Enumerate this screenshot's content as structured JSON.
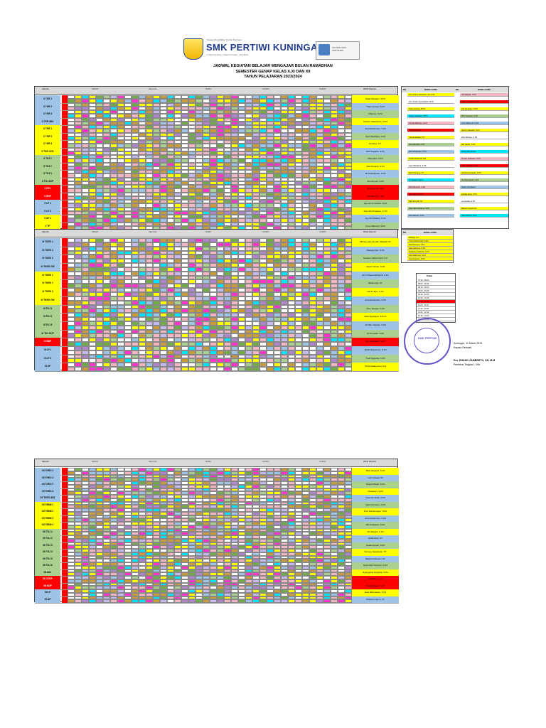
{
  "header": {
    "ministry": "Yayasan Pendidikan Pertiwi Kuningan",
    "school_name": "SMK PERTIWI KUNINGAN",
    "address": "Jl. Raya Cirendang - Cigugur, Kuningan - Jawa Barat",
    "iso_label": "ISO 9001:2015 CERTIFIED"
  },
  "titles": {
    "line1": "JADWAL KEGIATAN BELAJAR MENGAJAR BULAN RAMADHAN",
    "line2": "SEMESTER GENAP KELAS X,XI DAN XII",
    "line3": "TAHUN PELAJARAN 2023/2024"
  },
  "sheet1": {
    "head_kelas": "KELAS",
    "days": [
      "SENIN",
      "SELASA",
      "RABU",
      "KAMIS",
      "JUMAT"
    ],
    "head_wali": "WALI KELAS",
    "classes": [
      "X TKR 1",
      "X TKR 2",
      "X TKR 3",
      "X TKR AB1",
      "X TKR 1",
      "X TKR 2",
      "X TKR 3",
      "X TKR GG1",
      "X TKJ 1",
      "X TKJ 2",
      "X TKJ 3",
      "X TKJ ACP",
      "X RPL",
      "X BDP",
      "X LP 1",
      "X LP 2",
      "X AP 1",
      "X TP"
    ],
    "walis": [
      "Pajar Mutaqim, S.Pd",
      "Trias Lisnaya, S.Pd",
      "Marjono, S.Pd",
      "Moenir Oktavianus, S.Pd",
      "Ahmad Rahman, S.Pd",
      "Iwan Wardiana, S.Pd",
      "Endawo, S.T",
      "Riki Nugraha, S.Pd",
      "Marjuddin, S.Pd",
      "Atik Rustanti, S.Pd",
      "Ifit Nurbudiman, S.Pd",
      "Lilis Nuryati, S.Pd",
      "Dewi Hayati, S.Pd",
      "Sri Mulyani, S.Pd",
      "Ayu Ammi Anbiani, S.Pd",
      "Roni Dwi Prasetyo, S.Pd",
      "Ayu Siti Widiarti, S.Pd",
      "Cece Mahmud, S.Pd"
    ]
  },
  "sheet2": {
    "head_kelas": "KELAS",
    "days": [
      "SENIN",
      "SELASA",
      "RABU",
      "KAMIS",
      "JUMAT"
    ],
    "head_wali": "WALI KELAS",
    "classes": [
      "XI TKRO 1",
      "XI TKRO 2",
      "XI TKRO 3",
      "XI TKRO GW",
      "XI TKRO 1",
      "XI TKRO 2",
      "XI TKRO 3",
      "XI TKRO GW",
      "XI TKJ 1",
      "XI TKJ 2",
      "XI TKJ 3",
      "XI TKJ ACP",
      "XI BDP",
      "XI LP 1",
      "XI LP 2",
      "XI AP"
    ],
    "walis": [
      "Muhammad Hendar, Mulyadi, ST",
      "Dadang Alwi, S.Pd",
      "Derachi, Abdul Gholi, S.P",
      "Yayan Sofyan, S.Pd",
      "Enin Sihana Wirhandi, S.Pd",
      "Mulai Argo, ST",
      "Hilmi Fauzi, S.Pd",
      "Ahmad Rahman, S.Pd",
      "Tony Jeripani, S.Pd",
      "Eddi Agustiana, S.Kom",
      "Ali Rifer Nandar, S.Pd",
      "Ali Nuroallin, S.Pd",
      "Ayu Wahndani, S.Pd",
      "Shelli Nuyi Aman, S.Pd",
      "Toufi Nugraha, S.Pd",
      "Pinka Padayonan, S.E"
    ]
  },
  "sheet3": {
    "head_kelas": "KELAS",
    "days": [
      "SENIN",
      "SELASA",
      "RABU",
      "KAMIS",
      "JUMAT"
    ],
    "head_wali": "WALI KELAS",
    "classes": [
      "XII TKRO 1",
      "XII TKRO 2",
      "XII TKRO 3",
      "XII TKRO 4",
      "XII TKRO AB1",
      "XII TBSM 1",
      "XII TBSM 2",
      "XII TBSM 3",
      "XII TBSM 4",
      "XII TKJ 1",
      "XII TKJ 2",
      "XII TKJ 3",
      "XII TKJ 4",
      "XII TKJ 5",
      "XII TKJ 6",
      "XII AKL",
      "XII OTKP",
      "XII BDP",
      "XII LP",
      "XII AP"
    ],
    "walis": [
      "Budi Setiyanti, S.Pd",
      "Ade Hidayat, ST",
      "Pupat Pribadi, S.Pd",
      "Gunaman, S.Pd",
      "Tyas Nur Dullo, S.Pd",
      "Agus Purnama, S.Pd",
      "Popi Perlianingsin, S.Pd",
      "Ahmad Rahman, S.Pd",
      "Mif Andiyama, S.Pd",
      "Sri Mulyani, S.Pd",
      "Eli Budiarti, ST",
      "Nadha Apsari, S.Pd",
      "Nunung Hasanudin, ST",
      "Mawarni Mulyani, ST",
      "Dewi Wati Sutrisno, S.Pd",
      "Nyangyang Nugraha, S.Pd",
      "Dwi Wanti, S.Pd",
      "Dewi Marwan, S.Pd",
      "Dedi Rahmawan, S.Pd",
      "Shaldi Kuntjoro, ST"
    ]
  },
  "teacher_table": {
    "head_no": "NO",
    "head_name": "NAMA GURU",
    "left": [
      "Drs. Enang Zambreto, SH, M.M",
      "Drs. Ruslan Syahrabadi, M.Pd",
      "Trias Lisnaya, M.Pd",
      "Dasep Setiawan, M.Pd",
      "Ahmad Rahman, S.Pd",
      "Agus Gunawan",
      "Ahmad Zaelani, ST",
      "Elsa Maulida, S.Pd",
      "Elsa Padangan, S.Pd",
      "Taufik Mohamad Nuil",
      "Iwan Wardiana, S.Pd",
      "Ijam Purnama, ST",
      "Dr. Pegam Gopur",
      "Wiwi Bemarhi, S.Pd",
      "Ade Suryati, S.Pd",
      "Eddi Suryadi, ST",
      "Ryan Eka Pratama, S.Pd",
      "Dwi Hartono, S.Pd"
    ],
    "right": [
      "Arif Hidayat, S.Pd",
      "Agung Laksana, S.Pd",
      "Adi Sumarjan, S.Pd",
      "Budi Setiyanti, S.Pd",
      "Cece Mahmud, S.Pd",
      "Agung Suparlan, S.Pd",
      "Dani Rahayu, S.Pd",
      "Edi Yatniar, S.Pd",
      "Enang Nuryaman",
      "Firman Setiawan, S.Pd",
      "Galih Prakasa, S.Pd",
      "Hendra Gunawan, S.Pd",
      "Ika Rahmawati, S.Pd",
      "Jajang Supriatna",
      "Kartika Dewi, S.Pd",
      "Lia Amalia, S.Pd",
      "Maman Suparman",
      "Nina Herlina, S.Pd"
    ]
  },
  "wali_table2": {
    "head_no": "NO",
    "head_name": "NAMA GURU",
    "names": [
      "Bintang, S.T",
      "Yusuf Abdul Kodir, S.Pd",
      "Dedi Nuryani, S.Pd",
      "Iwan Sobarna, S.Pd",
      "Nandang Sukmara, S.Pd",
      "Rudi Rakhmat, S.Pd",
      "Tota Sugiarta, S.Pd"
    ]
  },
  "break_table": {
    "title": "Pukul",
    "slots": [
      "07.30 - 08.00",
      "08.00 - 08.30",
      "08.30 - 09.00",
      "09.00 - 09.30",
      "09.30 - 10.00",
      "10.00 - 10.30",
      "10.30 - 11.00",
      "11.00 - 11.30",
      "11.30 - 12.00",
      "12.00 - 12.30",
      "12.30 - 13.00",
      "13.00 - 13.30"
    ]
  },
  "signature": {
    "place_date": "Kuningan, 11 Maret 2024",
    "title": "Kepala Sekolah,",
    "name": "Drs. ENANG ZAMBRETO, SH, M.M",
    "role": "Pembina Tingkat I, IV/b",
    "stamp_text": "SMK PERTIWI"
  },
  "colors": {
    "red": "#ff0000",
    "yellow": "#ffff00",
    "blue": "#9dc3e6",
    "green": "#70ad47",
    "orange": "#c99b3a",
    "pink": "#f4b6c2",
    "purple": "#b084cc",
    "cyan": "#00e5ff",
    "magenta": "#ff33cc",
    "lightgreen": "#a9d08e",
    "lavender": "#c6b9f0"
  }
}
